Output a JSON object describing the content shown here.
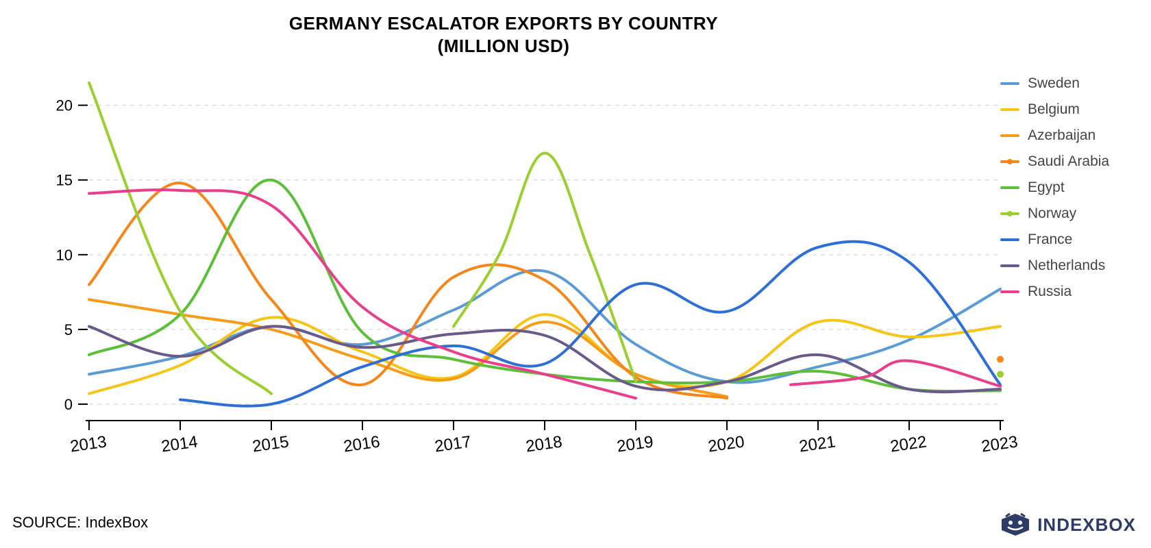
{
  "title_line1": "GERMANY ESCALATOR EXPORTS BY COUNTRY",
  "title_line2": "(MILLION USD)",
  "source_text": "SOURCE: IndexBox",
  "brand_text": "INDEXBOX",
  "brand_color": "#2d3b66",
  "chart": {
    "type": "line",
    "background_color": "#ffffff",
    "grid_color": "#cfcfcf",
    "grid_dash": "6 6",
    "axis_color": "#000000",
    "line_width": 4,
    "title_fontsize": 26,
    "tick_fontsize": 22,
    "xtick_fontsize": 24,
    "xtick_rotate_deg": 8,
    "legend_fontsize": 21,
    "x_categories": [
      "2013",
      "2014",
      "2015",
      "2016",
      "2017",
      "2018",
      "2019",
      "2020",
      "2021",
      "2022",
      "2023"
    ],
    "ylim": [
      0,
      22
    ],
    "yticks": [
      0,
      5,
      10,
      15,
      20
    ],
    "series": [
      {
        "name": "Sweden",
        "color": "#5b9bd5",
        "marker": "line",
        "points": [
          [
            0,
            2.0
          ],
          [
            1,
            3.2
          ],
          [
            2,
            5.2
          ],
          [
            3,
            4.0
          ],
          [
            4,
            6.3
          ],
          [
            5,
            8.9
          ],
          [
            6,
            4.0
          ],
          [
            7,
            1.5
          ],
          [
            8,
            2.5
          ],
          [
            9,
            4.3
          ],
          [
            10,
            7.7
          ]
        ]
      },
      {
        "name": "Belgium",
        "color": "#f5c518",
        "marker": "line",
        "points": [
          [
            0,
            0.7
          ],
          [
            1,
            2.6
          ],
          [
            2,
            5.8
          ],
          [
            3,
            3.5
          ],
          [
            4,
            1.8
          ],
          [
            5,
            6.0
          ],
          [
            6,
            2.0
          ],
          [
            7,
            1.5
          ],
          [
            8,
            5.5
          ],
          [
            9,
            4.5
          ],
          [
            10,
            5.2
          ]
        ]
      },
      {
        "name": "Azerbaijan",
        "color": "#f59c1a",
        "marker": "line",
        "points": [
          [
            0,
            7.0
          ],
          [
            1,
            6.0
          ],
          [
            2,
            5.0
          ],
          [
            3,
            3.0
          ],
          [
            4,
            1.7
          ],
          [
            5,
            5.5
          ],
          [
            6,
            2.0
          ],
          [
            7,
            0.5
          ]
        ]
      },
      {
        "name": "Saudi Arabia",
        "color": "#f5861a",
        "marker": "dot",
        "points": [
          [
            0,
            8.0
          ],
          [
            1,
            14.8
          ],
          [
            2,
            7.0
          ],
          [
            3,
            1.3
          ],
          [
            4,
            8.5
          ],
          [
            5,
            8.3
          ],
          [
            6,
            1.8
          ],
          [
            7,
            0.4
          ]
        ],
        "isolated": [
          [
            10,
            3.0
          ]
        ]
      },
      {
        "name": "Egypt",
        "color": "#5bbf3a",
        "marker": "line",
        "points": [
          [
            0,
            3.3
          ],
          [
            1,
            6.0
          ],
          [
            2,
            15.0
          ],
          [
            3,
            4.8
          ],
          [
            4,
            3.0
          ],
          [
            5,
            2.0
          ],
          [
            6,
            1.5
          ],
          [
            7,
            1.5
          ],
          [
            8,
            2.2
          ],
          [
            9,
            1.0
          ],
          [
            10,
            0.9
          ]
        ]
      },
      {
        "name": "Norway",
        "color": "#9bcf2f",
        "marker": "dot",
        "points": [
          [
            0,
            21.5
          ],
          [
            1,
            6.2
          ],
          [
            2,
            0.7
          ]
        ],
        "extra": [
          [
            4,
            5.2
          ],
          [
            4.5,
            10.0
          ],
          [
            5,
            16.8
          ],
          [
            5.5,
            10.0
          ],
          [
            6,
            1.5
          ]
        ],
        "isolated": [
          [
            10,
            2.0
          ]
        ]
      },
      {
        "name": "France",
        "color": "#2e6fd6",
        "marker": "line",
        "points": [
          [
            1,
            0.3
          ],
          [
            2,
            0.0
          ],
          [
            3,
            2.5
          ],
          [
            4,
            3.9
          ],
          [
            5,
            2.7
          ],
          [
            6,
            8.0
          ],
          [
            7,
            6.2
          ],
          [
            8,
            10.5
          ],
          [
            9,
            9.5
          ],
          [
            10,
            1.3
          ]
        ]
      },
      {
        "name": "Netherlands",
        "color": "#6a5a8c",
        "marker": "line",
        "points": [
          [
            0,
            5.2
          ],
          [
            1,
            3.2
          ],
          [
            2,
            5.2
          ],
          [
            3,
            3.8
          ],
          [
            4,
            4.7
          ],
          [
            5,
            4.6
          ],
          [
            6,
            1.2
          ],
          [
            7,
            1.5
          ],
          [
            8,
            3.3
          ],
          [
            9,
            1.0
          ],
          [
            10,
            1.0
          ]
        ]
      },
      {
        "name": "Russia",
        "color": "#e83e8c",
        "marker": "line",
        "points": [
          [
            0,
            14.1
          ],
          [
            1,
            14.3
          ],
          [
            2,
            13.3
          ],
          [
            3,
            6.5
          ],
          [
            4,
            3.5
          ],
          [
            5,
            2.0
          ],
          [
            6,
            0.4
          ]
        ],
        "extra": [
          [
            7.7,
            1.3
          ],
          [
            8.5,
            1.8
          ],
          [
            9,
            2.9
          ],
          [
            10,
            1.2
          ]
        ]
      }
    ]
  }
}
